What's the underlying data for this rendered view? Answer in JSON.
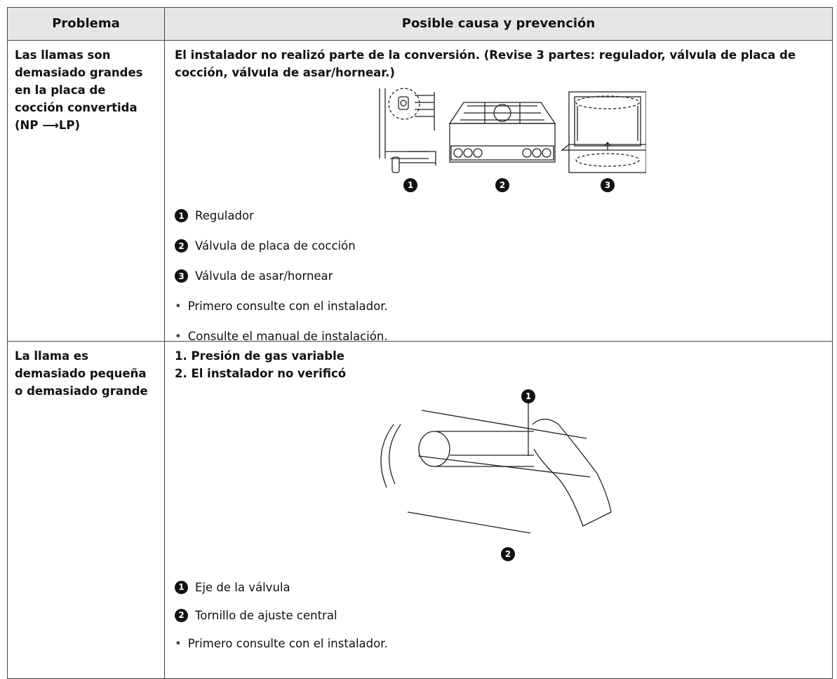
{
  "table": {
    "header": [
      "Problema",
      "Posible causa y prevención"
    ],
    "rows": [
      {
        "problem": "Las llamas son demasiado grandes en la placa de cocción convertida (NP ⟶LP)",
        "cause_lines": [
          "El instalador no realizó parte de la conversión. (Revise 3 partes: regulador, válvula de placa de cocción, válvula de asar/hornear.)"
        ],
        "figure_labels": [
          "1",
          "2",
          "3"
        ],
        "items": [
          {
            "number": "1",
            "text": "Regulador"
          },
          {
            "number": "2",
            "text": "Válvula de placa de cocción"
          },
          {
            "number": "3",
            "text": "Válvula de asar/hornear"
          }
        ],
        "notes": [
          "Primero consulte con el instalador.",
          "Consulte el manual de instalación."
        ]
      },
      {
        "problem": "La llama es demasiado pequeña o demasiado grande",
        "cause_lines": [
          "1. Presión de gas variable",
          "2. El instalador no verificó"
        ],
        "figure_labels": [
          "1",
          "2"
        ],
        "items": [
          {
            "number": "1",
            "text": "Eje de la válvula"
          },
          {
            "number": "2",
            "text": "Tornillo de ajuste central"
          }
        ],
        "notes": [
          "Primero consulte con el instalador."
        ]
      }
    ]
  }
}
